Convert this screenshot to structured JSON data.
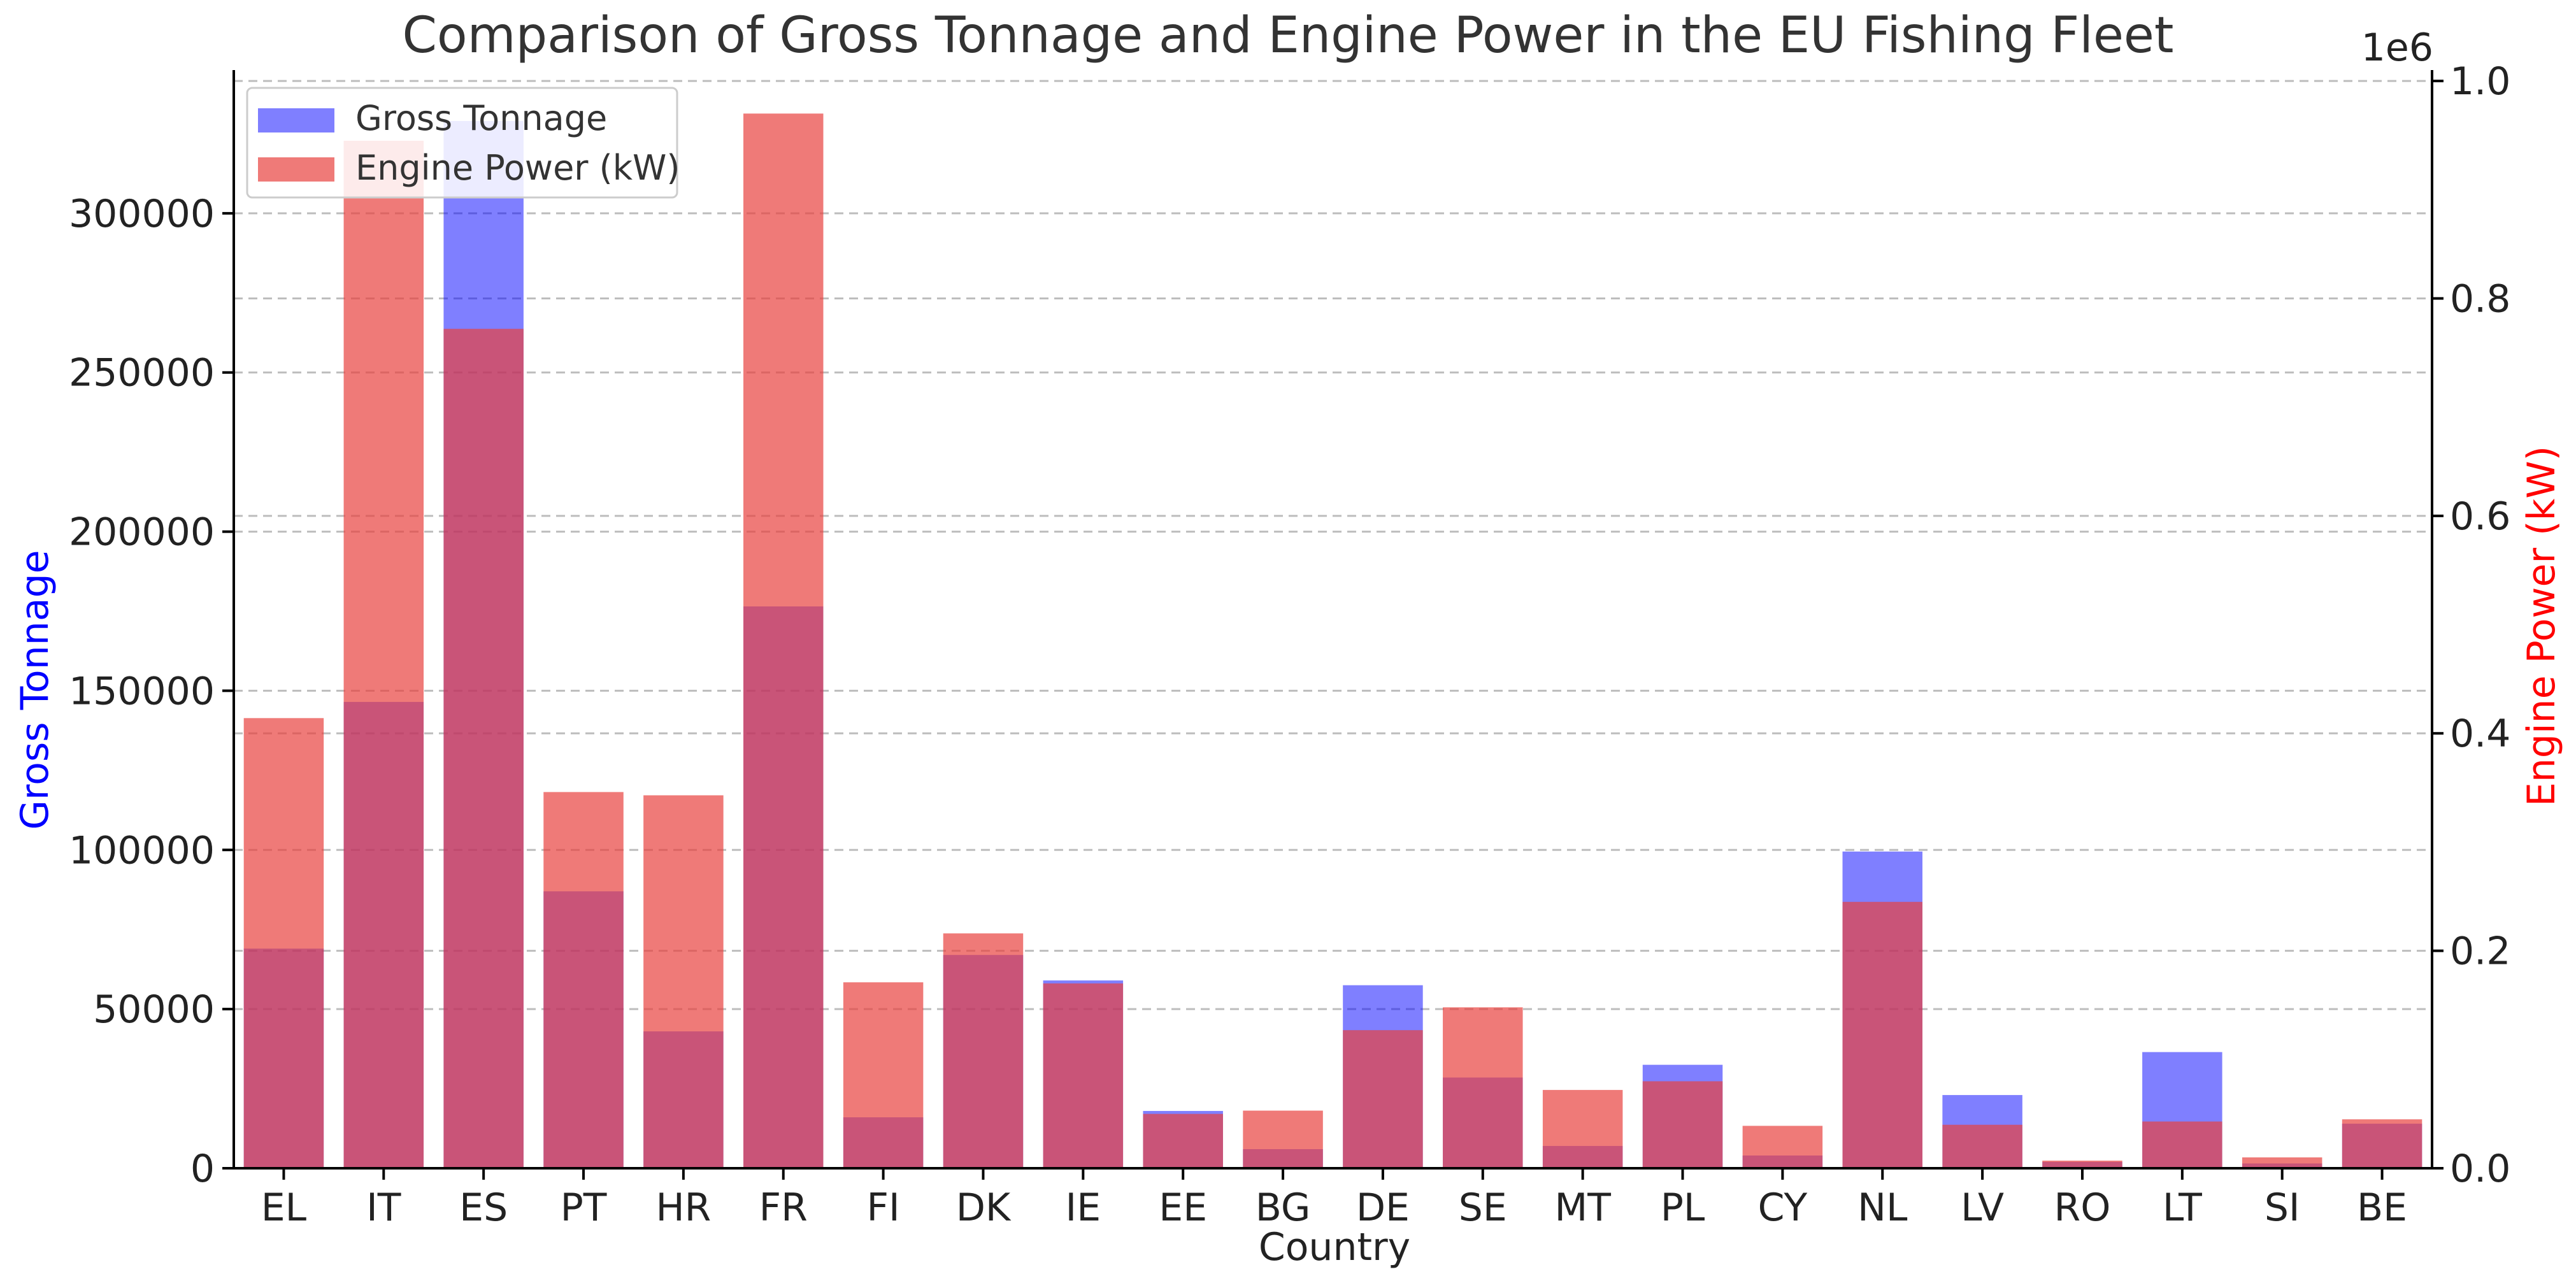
{
  "chart_data": {
    "type": "bar",
    "title": "Comparison of Gross Tonnage and Engine Power in the EU Fishing Fleet",
    "xlabel": "Country",
    "categories": [
      "EL",
      "IT",
      "ES",
      "PT",
      "HR",
      "FR",
      "FI",
      "DK",
      "IE",
      "EE",
      "BG",
      "DE",
      "SE",
      "MT",
      "PL",
      "CY",
      "NL",
      "LV",
      "RO",
      "LT",
      "SI",
      "BE"
    ],
    "series": [
      {
        "name": "Gross Tonnage",
        "axis": "left",
        "color": "#0000ff",
        "alpha": 0.5,
        "values": [
          69000,
          146500,
          329000,
          87000,
          43000,
          176500,
          16000,
          67000,
          59000,
          18000,
          6000,
          57500,
          28500,
          7000,
          32500,
          4000,
          99500,
          23000,
          2000,
          36500,
          1500,
          14000
        ]
      },
      {
        "name": "Engine Power (kW)",
        "axis": "right",
        "color": "#e8413f",
        "alpha": 0.7,
        "values": [
          414000,
          945000,
          772000,
          346000,
          343000,
          970000,
          171000,
          216000,
          170000,
          50000,
          53000,
          127000,
          148000,
          72000,
          80000,
          39000,
          245000,
          40000,
          7000,
          43000,
          10000,
          45000
        ]
      }
    ],
    "left_axis": {
      "label": "Gross Tonnage",
      "label_color": "#0000ff",
      "ylim": [
        0,
        345000
      ],
      "ticks": [
        0,
        50000,
        100000,
        150000,
        200000,
        250000,
        300000
      ],
      "tick_labels": [
        "0",
        "50000",
        "100000",
        "150000",
        "200000",
        "250000",
        "300000"
      ]
    },
    "right_axis": {
      "label": "Engine Power (kW)",
      "label_color": "#ff0000",
      "ylim": [
        0,
        1010000
      ],
      "ticks": [
        0,
        200000,
        400000,
        600000,
        800000,
        1000000
      ],
      "tick_labels": [
        "0.0",
        "0.2",
        "0.4",
        "0.6",
        "0.8",
        "1.0"
      ],
      "offset_text": "1e6"
    },
    "grid": true,
    "legend": "top-left"
  }
}
